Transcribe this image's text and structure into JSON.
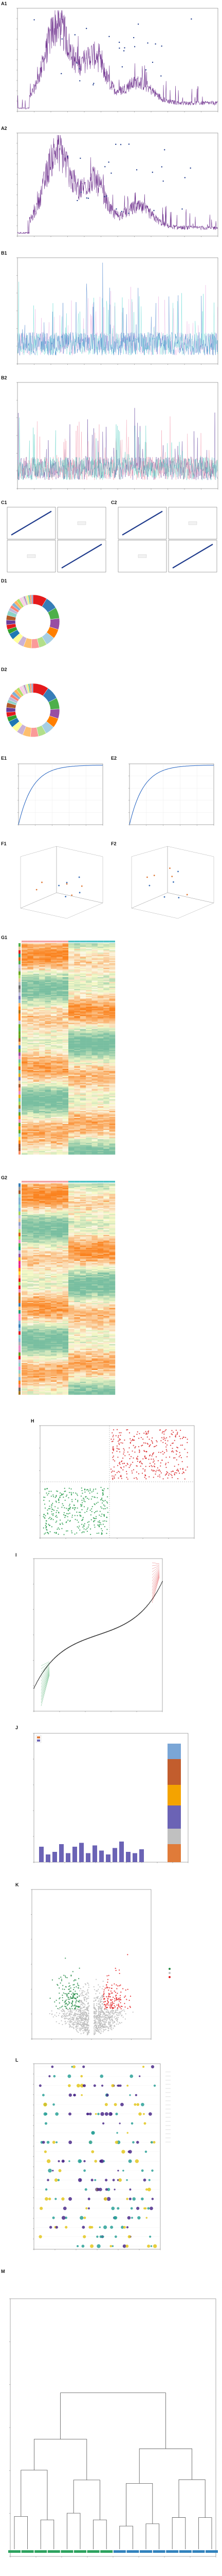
{
  "figure": {
    "panel_labels": [
      "A1",
      "A2",
      "B1",
      "B2",
      "C1",
      "C2",
      "D1",
      "D2",
      "E1",
      "E2",
      "F1",
      "F2",
      "G1",
      "G2",
      "H",
      "I",
      "J",
      "K",
      "L",
      "M"
    ]
  },
  "chart_data": [
    {
      "id": "A1",
      "type": "line",
      "title": "",
      "peak_labels": []
    },
    {
      "id": "A2",
      "type": "line",
      "title": "",
      "peak_labels": []
    },
    {
      "id": "B1",
      "type": "line",
      "title": "",
      "series": [
        {
          "name": ""
        },
        {
          "name": ""
        }
      ]
    },
    {
      "id": "B2",
      "type": "line",
      "title": "",
      "series": [
        {
          "name": ""
        },
        {
          "name": ""
        },
        {
          "name": ""
        }
      ]
    },
    {
      "id": "C1",
      "type": "scatter",
      "title": "",
      "grid": "2x2"
    },
    {
      "id": "C2",
      "type": "scatter",
      "title": "",
      "grid": "2x2"
    },
    {
      "id": "D1",
      "type": "pie",
      "title": "",
      "colors": [
        "#e41a1c",
        "#377eb8",
        "#4daf4a",
        "#984ea3",
        "#ff7f00",
        "#a6cee3",
        "#b2df8a",
        "#fb9a99",
        "#fdbf6f",
        "#cab2d6",
        "#ffff99",
        "#1f78b4",
        "#33a02c",
        "#e31a1c",
        "#6a3d9a",
        "#b15928",
        "#8dd3c7",
        "#bebada",
        "#fb8072",
        "#80b1d3",
        "#fdb462",
        "#b3de69",
        "#fccde5",
        "#d9d9d9",
        "#bc80bd",
        "#ccebc5",
        "#ffed6f",
        "#66c2a5",
        "#fc8d62",
        "#8da0cb"
      ],
      "legend": []
    },
    {
      "id": "D2",
      "type": "pie",
      "title": "",
      "colors": [
        "#e41a1c",
        "#377eb8",
        "#4daf4a",
        "#984ea3",
        "#ff7f00",
        "#a6cee3",
        "#b2df8a",
        "#fb9a99",
        "#fdbf6f",
        "#cab2d6",
        "#ffff99",
        "#1f78b4",
        "#33a02c",
        "#e31a1c",
        "#6a3d9a",
        "#b15928",
        "#8dd3c7",
        "#bebada",
        "#fb8072",
        "#80b1d3",
        "#fdb462",
        "#b3de69",
        "#fccde5",
        "#d9d9d9",
        "#bc80bd",
        "#ccebc5",
        "#ffed6f",
        "#66c2a5",
        "#fc8d62",
        "#8da0cb"
      ],
      "legend": []
    },
    {
      "id": "E1",
      "type": "line",
      "title": "",
      "xlabel": "",
      "ylabel": ""
    },
    {
      "id": "E2",
      "type": "line",
      "title": "",
      "xlabel": "",
      "ylabel": ""
    },
    {
      "id": "F1",
      "type": "scatter",
      "title": "",
      "style": "3d"
    },
    {
      "id": "F2",
      "type": "scatter",
      "title": "",
      "style": "3d"
    },
    {
      "id": "G1",
      "type": "heatmap",
      "title": "",
      "legend": []
    },
    {
      "id": "G2",
      "type": "heatmap",
      "title": "",
      "legend": []
    },
    {
      "id": "H",
      "type": "scatter",
      "title": "",
      "colors": [
        "#1a9641",
        "#d7191c"
      ]
    },
    {
      "id": "I",
      "type": "scatter",
      "title": "",
      "xlabel": "",
      "ylabel": "",
      "legend_title": "",
      "legend": []
    },
    {
      "id": "J",
      "type": "bar",
      "title": "",
      "legend": []
    },
    {
      "id": "K",
      "type": "scatter",
      "title": "",
      "xlabel": "",
      "ylabel": "",
      "legend_title": "",
      "legend": []
    },
    {
      "id": "L",
      "type": "scatter",
      "title": "",
      "xlabel": "",
      "ylabel": "",
      "legend": []
    },
    {
      "id": "M",
      "type": "diagram",
      "title": "",
      "legend_title": "",
      "legend": []
    }
  ]
}
